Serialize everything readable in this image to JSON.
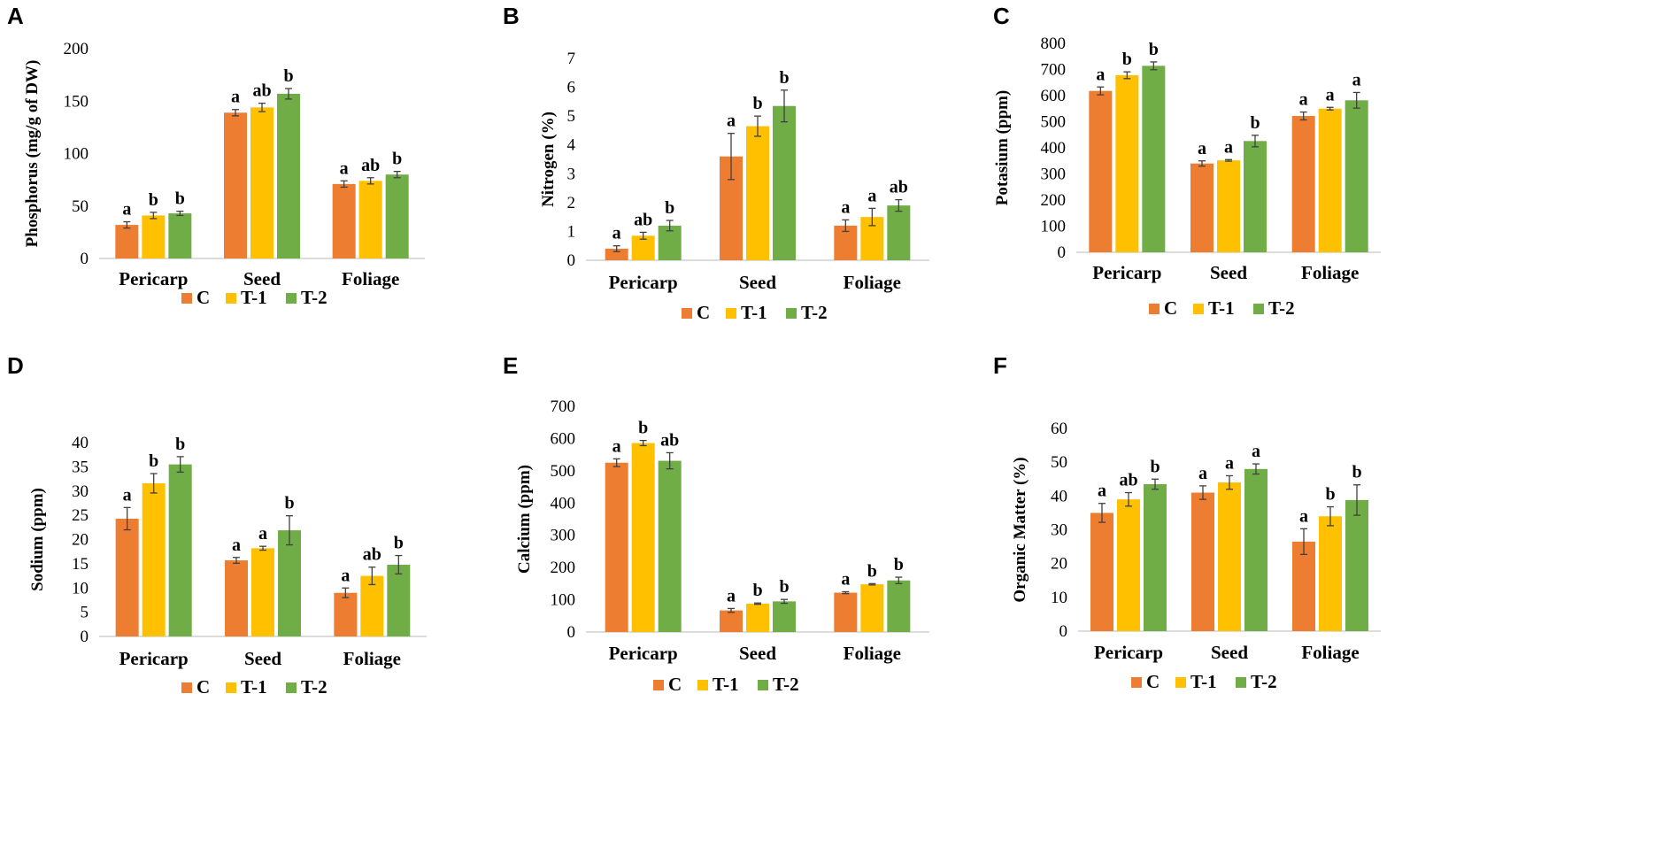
{
  "series_names": [
    "C",
    "T-1",
    "T-2"
  ],
  "colors": [
    "#ED7D31",
    "#FFC000",
    "#70AD47"
  ],
  "chart_data": [
    {
      "panel": "A",
      "type": "bar",
      "ylabel": "Phosphorus  (mg/g of DW)",
      "categories": [
        "Pericarp",
        "Seed",
        "Foliage"
      ],
      "ylim": [
        0,
        200
      ],
      "ticks": [
        0,
        50,
        100,
        150,
        200
      ],
      "series": [
        {
          "name": "C",
          "values": [
            32,
            139,
            71
          ],
          "errors": [
            3,
            3,
            3
          ],
          "letters": [
            "a",
            "a",
            "a"
          ]
        },
        {
          "name": "T-1",
          "values": [
            41,
            144,
            74
          ],
          "errors": [
            3,
            4,
            3
          ],
          "letters": [
            "b",
            "ab",
            "ab"
          ]
        },
        {
          "name": "T-2",
          "values": [
            43,
            157,
            80
          ],
          "errors": [
            2,
            5,
            3
          ],
          "letters": [
            "b",
            "b",
            "b"
          ]
        }
      ]
    },
    {
      "panel": "B",
      "type": "bar",
      "ylabel": "Nitrogen (%)",
      "categories": [
        "Pericarp",
        "Seed",
        "Foliage"
      ],
      "ylim": [
        0,
        7
      ],
      "ticks": [
        0,
        1,
        2,
        3,
        4,
        5,
        6,
        7
      ],
      "series": [
        {
          "name": "C",
          "values": [
            0.4,
            3.6,
            1.2
          ],
          "errors": [
            0.1,
            0.8,
            0.2
          ],
          "letters": [
            "a",
            "a",
            "a"
          ]
        },
        {
          "name": "T-1",
          "values": [
            0.85,
            4.65,
            1.5
          ],
          "errors": [
            0.12,
            0.35,
            0.3
          ],
          "letters": [
            "ab",
            "b",
            "a"
          ]
        },
        {
          "name": "T-2",
          "values": [
            1.2,
            5.35,
            1.9
          ],
          "errors": [
            0.18,
            0.55,
            0.2
          ],
          "letters": [
            "b",
            "b",
            "ab"
          ]
        }
      ]
    },
    {
      "panel": "C",
      "type": "bar",
      "ylabel": "Potasium  (ppm)",
      "categories": [
        "Pericarp",
        "Seed",
        "Foliage"
      ],
      "ylim": [
        0,
        800
      ],
      "ticks": [
        0,
        100,
        200,
        300,
        400,
        500,
        600,
        700,
        800
      ],
      "series": [
        {
          "name": "C",
          "values": [
            618,
            340,
            522
          ],
          "errors": [
            15,
            10,
            15
          ],
          "letters": [
            "a",
            "a",
            "a"
          ]
        },
        {
          "name": "T-1",
          "values": [
            678,
            352,
            550
          ],
          "errors": [
            13,
            3,
            5
          ],
          "letters": [
            "b",
            "a",
            "a"
          ]
        },
        {
          "name": "T-2",
          "values": [
            714,
            426,
            582
          ],
          "errors": [
            15,
            22,
            30
          ],
          "letters": [
            "b",
            "b",
            "a"
          ]
        }
      ]
    },
    {
      "panel": "D",
      "type": "bar",
      "ylabel": "Sodium  (ppm)",
      "categories": [
        "Pericarp",
        "Seed",
        "Foliage"
      ],
      "ylim": [
        0,
        40
      ],
      "ticks": [
        0,
        5,
        10,
        15,
        20,
        25,
        30,
        35,
        40
      ],
      "series": [
        {
          "name": "C",
          "values": [
            24.3,
            15.7,
            9
          ],
          "errors": [
            2.3,
            0.6,
            1
          ],
          "letters": [
            "a",
            "a",
            "a"
          ]
        },
        {
          "name": "T-1",
          "values": [
            31.6,
            18.2,
            12.5
          ],
          "errors": [
            2,
            0.4,
            1.8
          ],
          "letters": [
            "b",
            "a",
            "ab"
          ]
        },
        {
          "name": "T-2",
          "values": [
            35.5,
            21.9,
            14.8
          ],
          "errors": [
            1.6,
            3,
            1.9
          ],
          "letters": [
            "b",
            "b",
            "b"
          ]
        }
      ]
    },
    {
      "panel": "E",
      "type": "bar",
      "ylabel": "Calcium  (ppm)",
      "categories": [
        "Pericarp",
        "Seed",
        "Foliage"
      ],
      "ylim": [
        0,
        700
      ],
      "ticks": [
        0,
        100,
        200,
        300,
        400,
        500,
        600,
        700
      ],
      "series": [
        {
          "name": "C",
          "values": [
            525,
            67,
            122
          ],
          "errors": [
            12,
            6,
            3
          ],
          "letters": [
            "a",
            "a",
            "a"
          ]
        },
        {
          "name": "T-1",
          "values": [
            586,
            88,
            148
          ],
          "errors": [
            8,
            2,
            2
          ],
          "letters": [
            "b",
            "b",
            "b"
          ]
        },
        {
          "name": "T-2",
          "values": [
            531,
            95,
            160
          ],
          "errors": [
            25,
            6,
            10
          ],
          "letters": [
            "ab",
            "b",
            "b"
          ]
        }
      ]
    },
    {
      "panel": "F",
      "type": "bar",
      "ylabel": "Organic Matter (%)",
      "categories": [
        "Pericarp",
        "Seed",
        "Foliage"
      ],
      "ylim": [
        0,
        60
      ],
      "ticks": [
        0,
        10,
        20,
        30,
        40,
        50,
        60
      ],
      "series": [
        {
          "name": "C",
          "values": [
            35,
            41,
            26.5
          ],
          "errors": [
            2.8,
            2,
            3.8
          ],
          "letters": [
            "a",
            "a",
            "a"
          ]
        },
        {
          "name": "T-1",
          "values": [
            39,
            44,
            34
          ],
          "errors": [
            2,
            2,
            2.8
          ],
          "letters": [
            "ab",
            "a",
            "b"
          ]
        },
        {
          "name": "T-2",
          "values": [
            43.5,
            48,
            38.8
          ],
          "errors": [
            1.5,
            1.5,
            4.5
          ],
          "letters": [
            "b",
            "a",
            "b"
          ]
        }
      ]
    }
  ]
}
